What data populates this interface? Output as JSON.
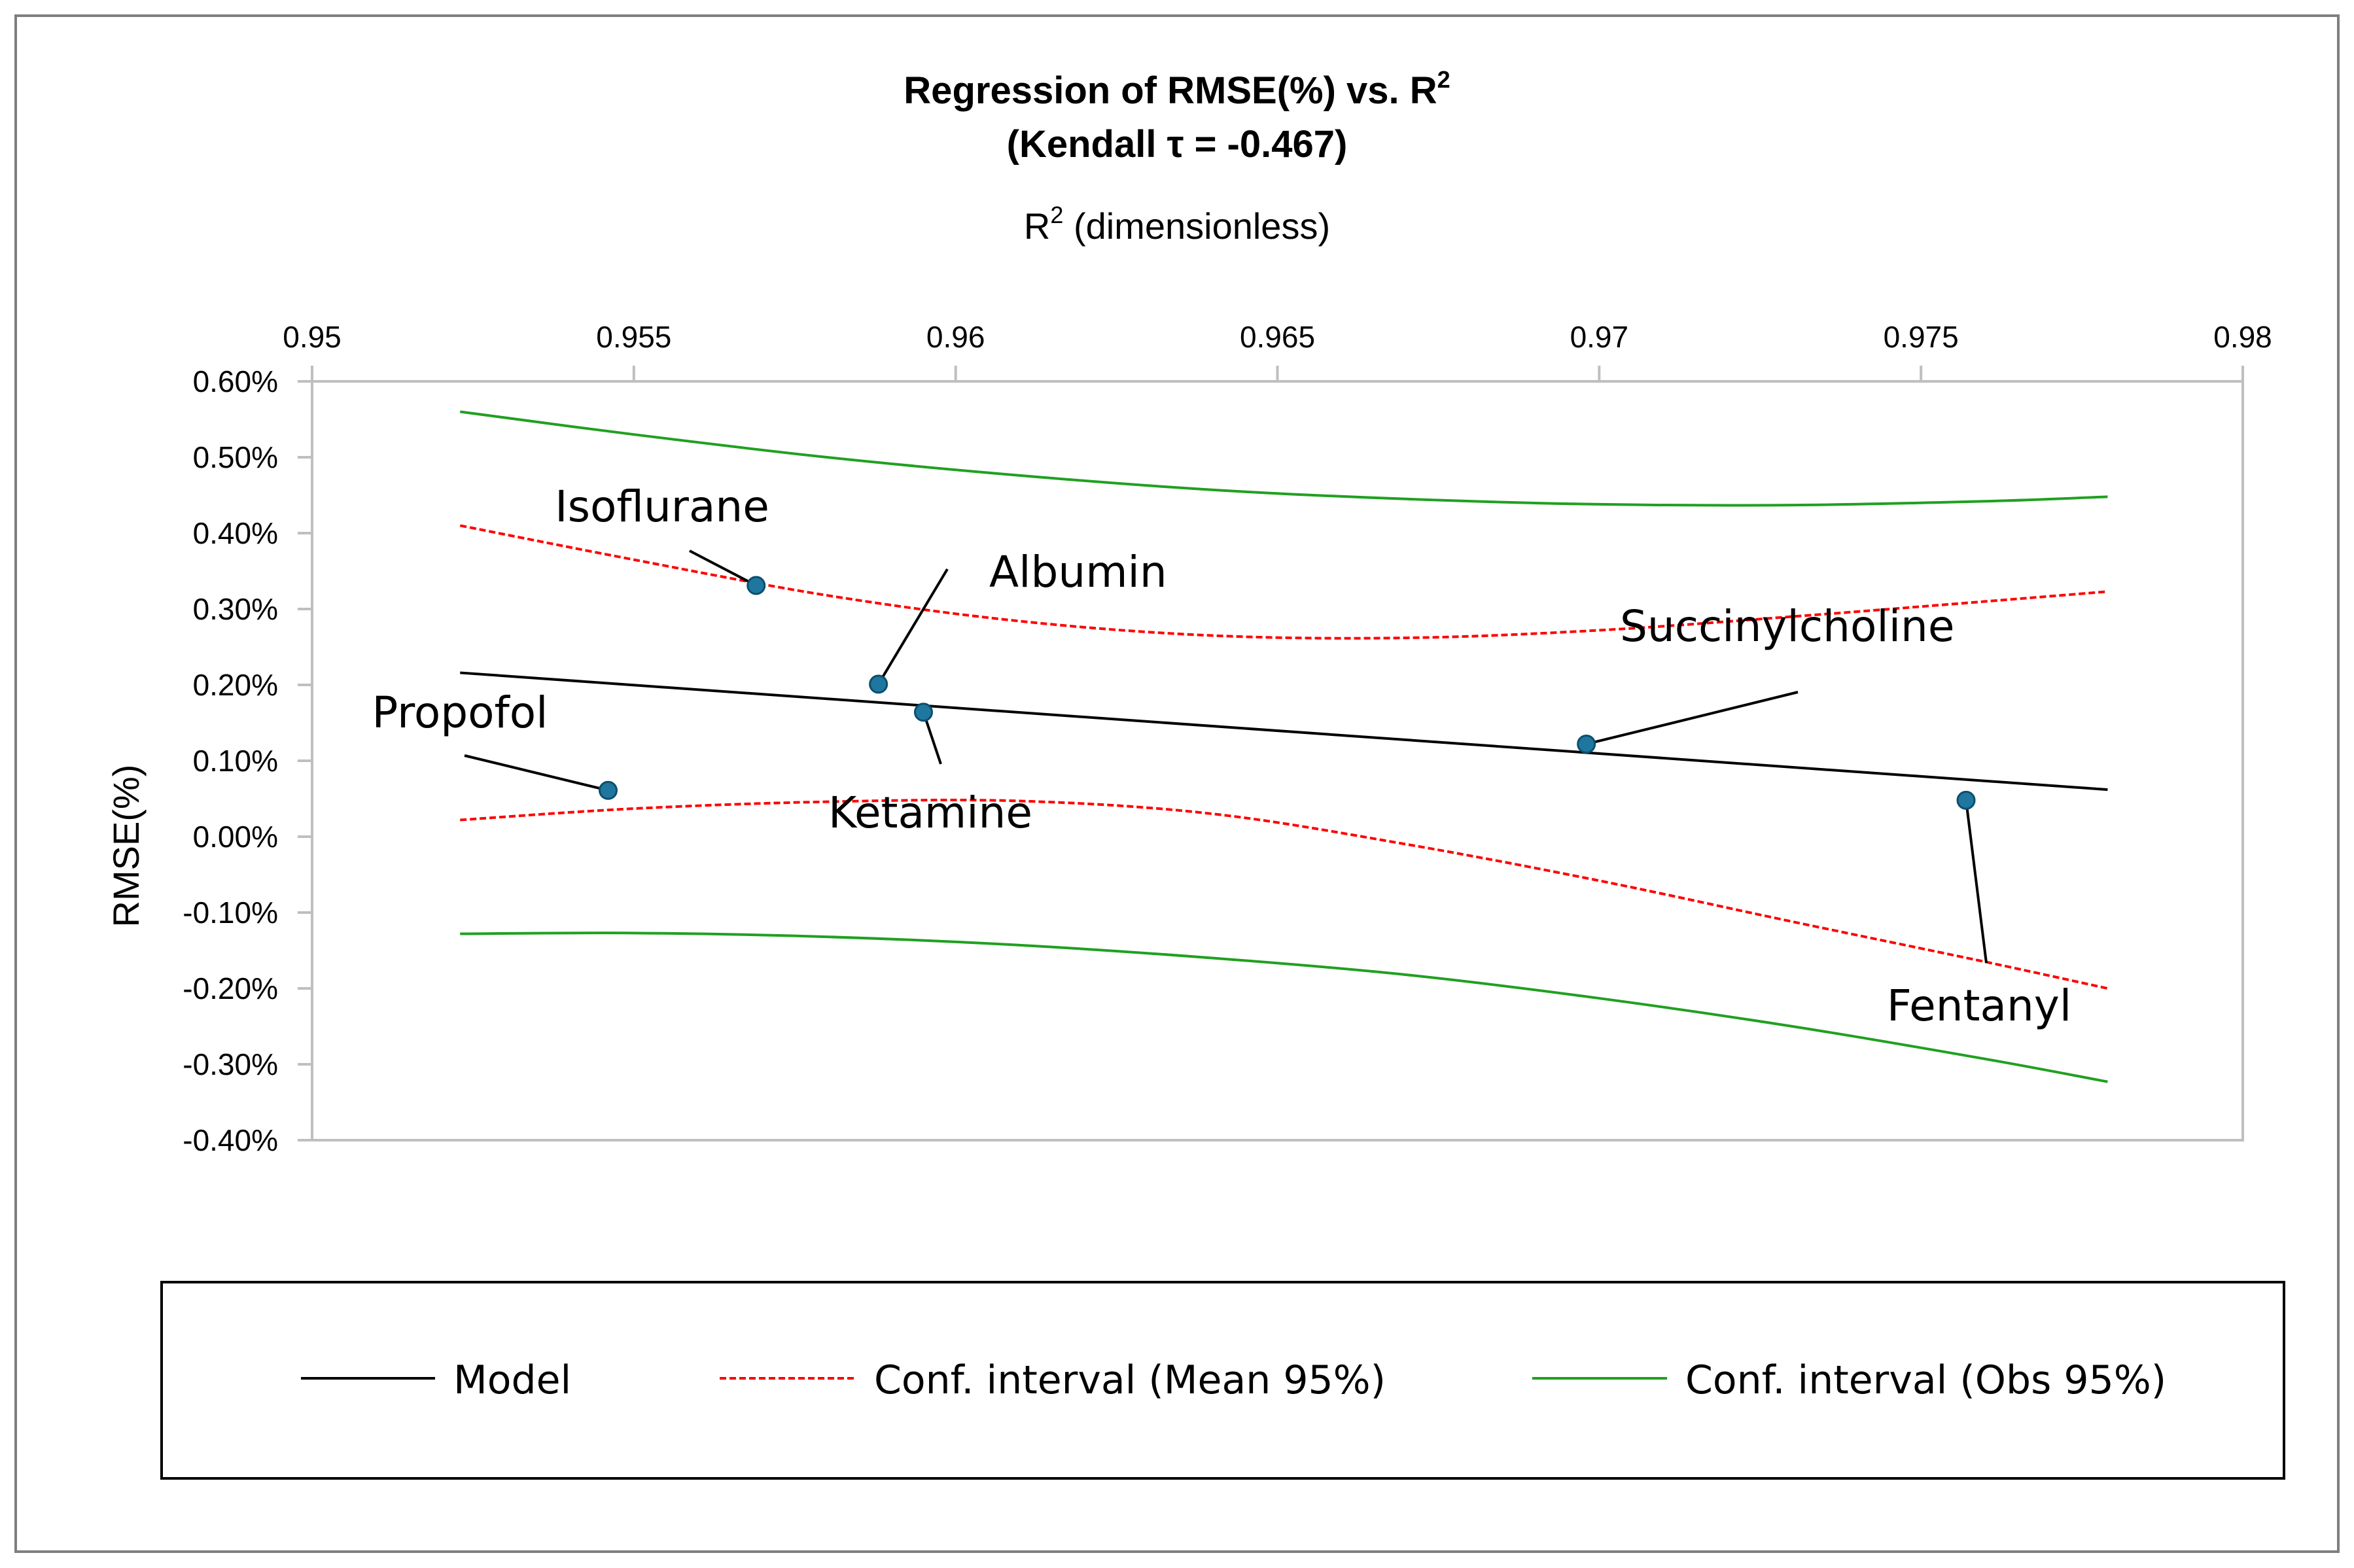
{
  "chart_data": {
    "type": "scatter",
    "title": "Regression of RMSE(%) vs. R",
    "title_sup": "2",
    "subtitle": "(Kendall τ = -0.467)",
    "xlabel": "R",
    "xlabel_sup": "2",
    "xlabel_suffix": " (dimensionless)",
    "ylabel": "RMSE(%)",
    "x_axis_position": "top",
    "xlim": [
      0.95,
      0.98
    ],
    "ylim": [
      -0.4,
      0.6
    ],
    "x_ticks": [
      "0.95",
      "0.955",
      "0.96",
      "0.965",
      "0.97",
      "0.975",
      "0.98"
    ],
    "x_tick_values": [
      0.95,
      0.955,
      0.96,
      0.965,
      0.97,
      0.975,
      0.98
    ],
    "y_ticks": [
      "0.60%",
      "0.50%",
      "0.40%",
      "0.30%",
      "0.20%",
      "0.10%",
      "0.00%",
      "-0.10%",
      "-0.20%",
      "-0.30%",
      "-0.40%"
    ],
    "y_tick_values": [
      0.6,
      0.5,
      0.4,
      0.3,
      0.2,
      0.1,
      0.0,
      -0.1,
      -0.2,
      -0.3,
      -0.4
    ],
    "grid": false,
    "legend_position": "bottom",
    "points": [
      {
        "label": "Propofol",
        "x": 0.9546,
        "y": 0.061
      },
      {
        "label": "Isoflurane",
        "x": 0.9569,
        "y": 0.331
      },
      {
        "label": "Albumin",
        "x": 0.9588,
        "y": 0.201
      },
      {
        "label": "Ketamine",
        "x": 0.9595,
        "y": 0.164
      },
      {
        "label": "Succinylcholine",
        "x": 0.9698,
        "y": 0.122
      },
      {
        "label": "Fentanyl",
        "x": 0.9757,
        "y": 0.048
      }
    ],
    "point_color": "#1f77a0",
    "series": [
      {
        "name": "Model",
        "color": "#000000",
        "style": "solid",
        "x": [
          0.9523,
          0.9779
        ],
        "y": [
          0.216,
          0.062
        ]
      },
      {
        "name": "Conf. interval (Mean 95%)",
        "color": "#ff0000",
        "style": "dashed",
        "band": true,
        "x": [
          0.9523,
          0.955,
          0.958,
          0.961,
          0.964,
          0.967,
          0.97,
          0.973,
          0.976,
          0.9779
        ],
        "upper": [
          0.41,
          0.365,
          0.318,
          0.284,
          0.265,
          0.262,
          0.272,
          0.29,
          0.31,
          0.323
        ],
        "lower": [
          0.022,
          0.037,
          0.046,
          0.047,
          0.03,
          -0.01,
          -0.058,
          -0.112,
          -0.165,
          -0.2
        ]
      },
      {
        "name": "Conf. interval (Obs 95%)",
        "color": "#20a020",
        "style": "solid",
        "band": true,
        "x": [
          0.9523,
          0.955,
          0.958,
          0.961,
          0.964,
          0.967,
          0.97,
          0.973,
          0.976,
          0.9779
        ],
        "upper": [
          0.56,
          0.53,
          0.5,
          0.476,
          0.457,
          0.445,
          0.438,
          0.437,
          0.442,
          0.448
        ],
        "lower": [
          -0.128,
          -0.127,
          -0.132,
          -0.143,
          -0.16,
          -0.182,
          -0.213,
          -0.25,
          -0.293,
          -0.323
        ]
      }
    ]
  }
}
